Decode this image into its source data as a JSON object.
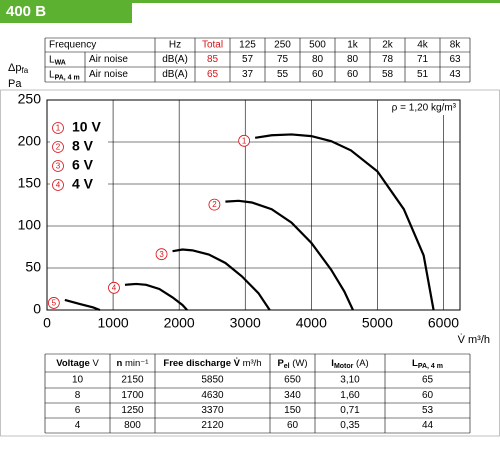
{
  "header": {
    "title": "400 B"
  },
  "noise_table": {
    "columns": [
      "Frequency",
      "Hz",
      "Total",
      "125",
      "250",
      "500",
      "1k",
      "2k",
      "4k",
      "8k"
    ],
    "rows": [
      {
        "label": "L",
        "sub": "WA",
        "kind": "Air noise",
        "unit": "dB(A)",
        "values": [
          "85",
          "57",
          "75",
          "80",
          "80",
          "78",
          "71",
          "63"
        ]
      },
      {
        "label": "L",
        "sub": "PA, 4 m",
        "kind": "Air noise",
        "unit": "dB(A)",
        "values": [
          "65",
          "37",
          "55",
          "60",
          "60",
          "58",
          "51",
          "43"
        ]
      }
    ]
  },
  "chart_data": {
    "type": "line",
    "y_label": "Δp",
    "y_label_sub": "fa",
    "y_label_unit": "Pa",
    "x_label": "V̇ m³/h",
    "annotation": "ρ = 1,20 kg/m³",
    "xlim": [
      0,
      6250
    ],
    "ylim": [
      0,
      250
    ],
    "xticks": [
      0,
      1000,
      2000,
      3000,
      4000,
      5000,
      6000
    ],
    "yticks": [
      0,
      50,
      100,
      150,
      200,
      250
    ],
    "grid": true,
    "series": [
      {
        "name": "10 V",
        "marker": "1",
        "color": "#000000",
        "x": [
          3150,
          3400,
          3700,
          4000,
          4300,
          4600,
          5000,
          5400,
          5700,
          5850
        ],
        "y": [
          205,
          208,
          209,
          207,
          201,
          190,
          165,
          120,
          65,
          0
        ]
      },
      {
        "name": "8 V",
        "marker": "2",
        "color": "#000000",
        "x": [
          2700,
          2900,
          3100,
          3400,
          3700,
          4000,
          4300,
          4500,
          4630
        ],
        "y": [
          129,
          130,
          128,
          120,
          104,
          80,
          48,
          22,
          0
        ]
      },
      {
        "name": "6 V",
        "marker": "3",
        "color": "#000000",
        "x": [
          1900,
          2050,
          2200,
          2450,
          2700,
          2950,
          3200,
          3370
        ],
        "y": [
          70,
          72,
          71,
          66,
          56,
          40,
          20,
          0
        ]
      },
      {
        "name": "4 V",
        "marker": "4",
        "color": "#000000",
        "x": [
          1180,
          1350,
          1500,
          1700,
          1900,
          2050,
          2120
        ],
        "y": [
          30,
          31,
          30,
          25,
          15,
          6,
          0
        ]
      },
      {
        "marker": "5",
        "color": "#000000",
        "x": [
          270,
          500,
          700,
          800
        ],
        "y": [
          12,
          7,
          3,
          0
        ]
      }
    ]
  },
  "data_table": {
    "columns": [
      {
        "text": "Voltage",
        "unit": " V"
      },
      {
        "text": "n",
        "unit": " min⁻¹"
      },
      {
        "text": "Free discharge V̇",
        "unit": " m³/h"
      },
      {
        "text": "P",
        "sub": "el",
        "unit": " (W)"
      },
      {
        "text": "I",
        "sub": "Motor",
        "unit": " (A)"
      },
      {
        "text": "L",
        "sub": "PA, 4 m"
      }
    ],
    "rows": [
      [
        "10",
        "2150",
        "5850",
        "650",
        "3,10",
        "65"
      ],
      [
        "8",
        "1700",
        "4630",
        "340",
        "1,60",
        "60"
      ],
      [
        "6",
        "1250",
        "3370",
        "150",
        "0,71",
        "53"
      ],
      [
        "4",
        "800",
        "2120",
        "60",
        "0,35",
        "44"
      ]
    ]
  }
}
